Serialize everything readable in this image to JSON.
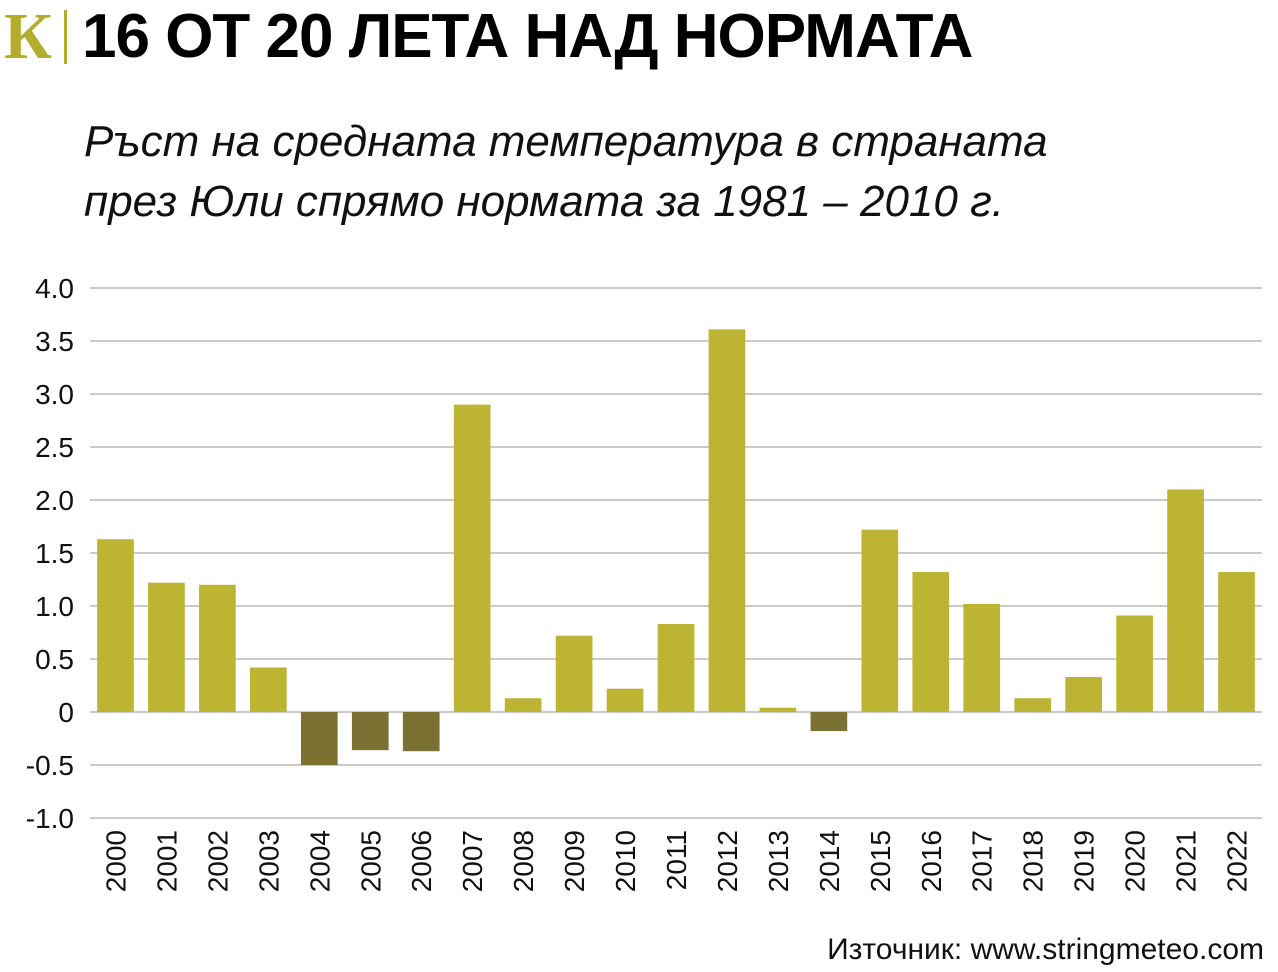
{
  "header": {
    "logo": "К",
    "title": "16 ОТ 20 ЛЕТА НАД НОРМАТА"
  },
  "subtitle": {
    "line1": "Ръст на средната температура в страната",
    "line2": "през Юли спрямо нормата за 1981 – 2010 г."
  },
  "source": "Източник: www.stringmeteo.com",
  "colors": {
    "positive": "#bdb434",
    "negative": "#7a7132",
    "grid": "#b8b8b8",
    "brand": "#b3ad2f"
  },
  "chart_data": {
    "type": "bar",
    "categories": [
      "2000",
      "2001",
      "2002",
      "2003",
      "2004",
      "2005",
      "2006",
      "2007",
      "2008",
      "2009",
      "2010",
      "2011",
      "2012",
      "2013",
      "2014",
      "2015",
      "2016",
      "2017",
      "2018",
      "2019",
      "2020",
      "2021",
      "2022"
    ],
    "values": [
      1.63,
      1.22,
      1.2,
      0.42,
      -0.5,
      -0.36,
      -0.37,
      2.9,
      0.13,
      0.72,
      0.22,
      0.83,
      3.61,
      0.04,
      -0.18,
      1.72,
      1.32,
      1.02,
      0.13,
      0.33,
      0.91,
      2.1,
      1.32
    ],
    "yticks": [
      "4.0",
      "3.5",
      "3.0",
      "2.5",
      "2.0",
      "1.5",
      "1.0",
      "0.5",
      "0",
      "-0.5",
      "-1.0"
    ],
    "ylim": [
      -1.0,
      4.0
    ],
    "grid": true
  }
}
